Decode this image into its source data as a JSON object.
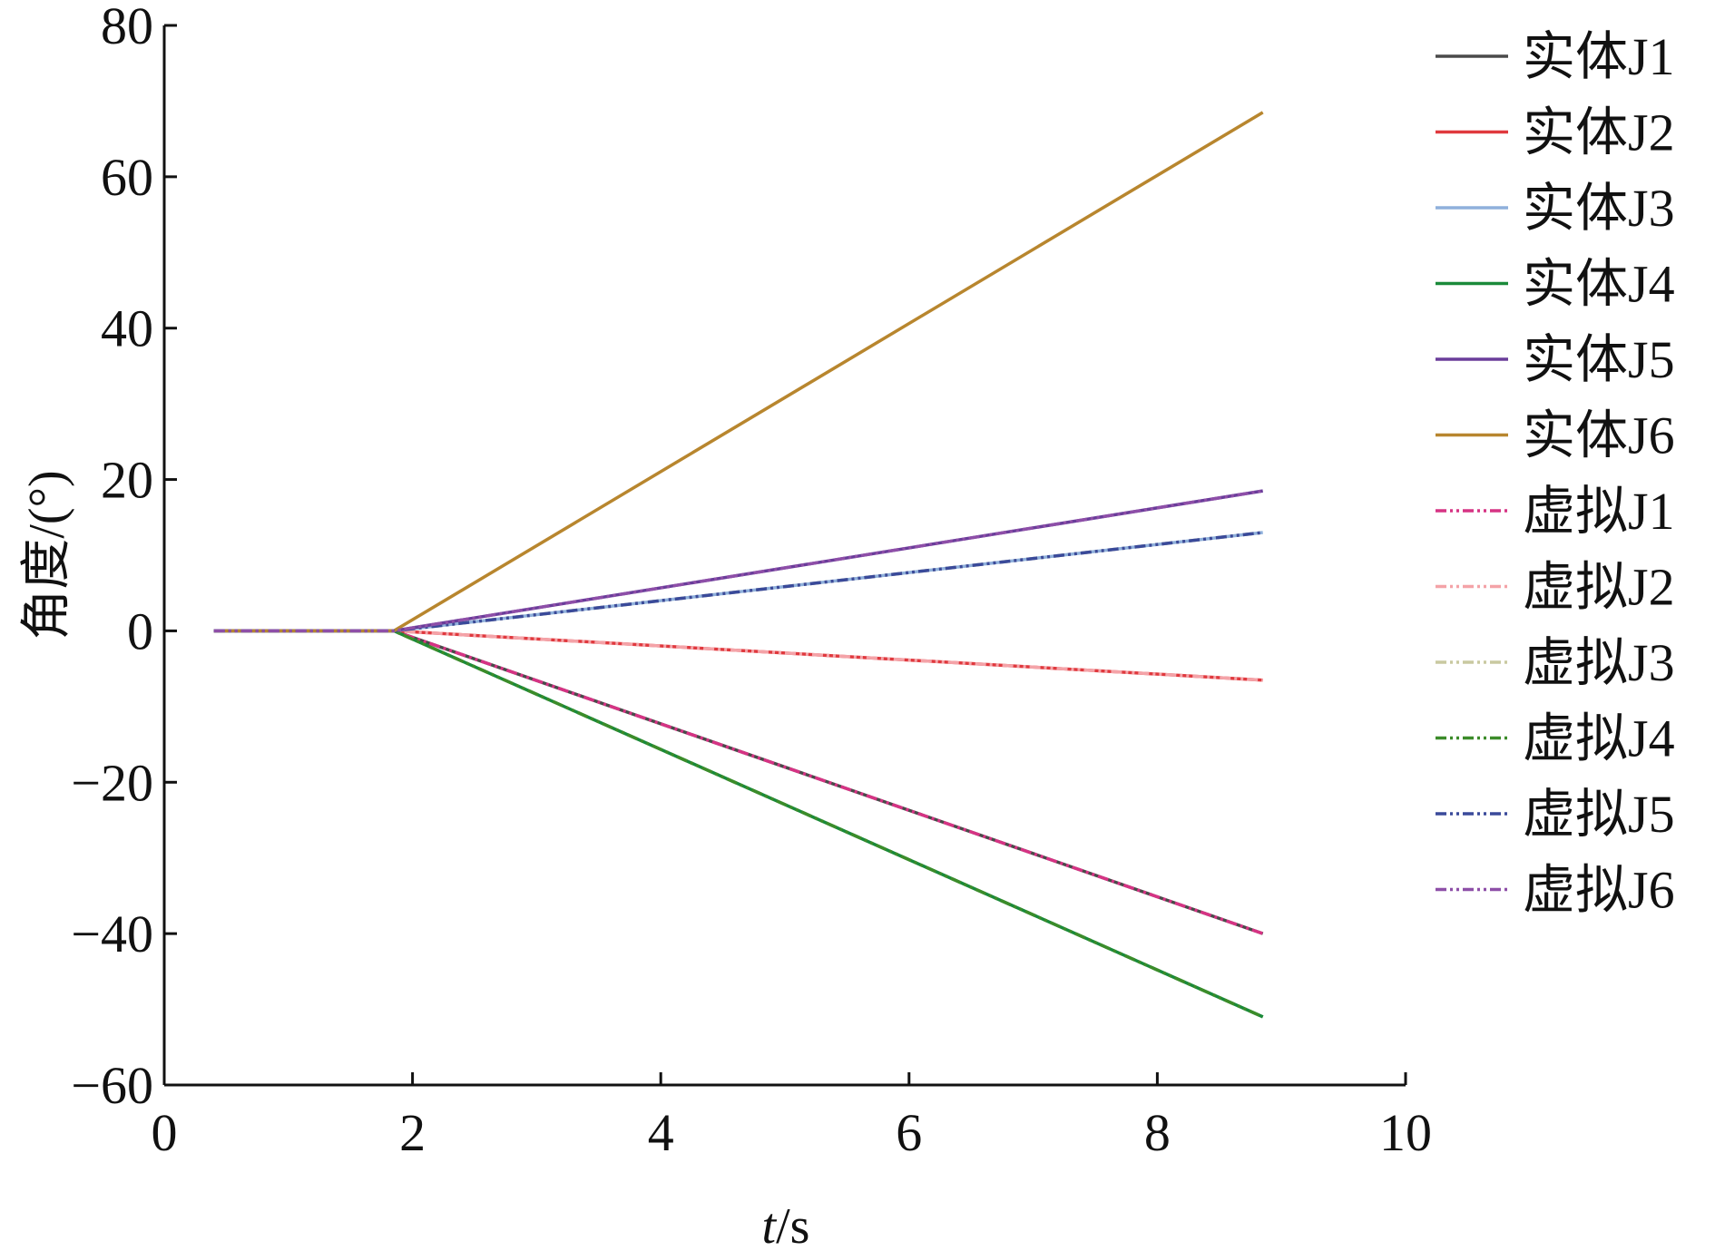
{
  "chart_data": {
    "type": "line",
    "title": "",
    "xlabel_italic": "t",
    "xlabel_rest": "/s",
    "ylabel": "角度/(°)",
    "xlim": [
      0,
      10
    ],
    "ylim": [
      -60,
      80
    ],
    "xticks": [
      0,
      2,
      4,
      6,
      8,
      10
    ],
    "yticks": [
      -60,
      -40,
      -20,
      0,
      20,
      40,
      60,
      80
    ],
    "ytick_labels": [
      "−60",
      "−40",
      "−20",
      "0",
      "20",
      "40",
      "60",
      "80"
    ],
    "grid": false,
    "legend_position": "right",
    "series": [
      {
        "name": "实体J1",
        "color": "#4a4a4a",
        "dash": "solid",
        "x": [
          0.4,
          1.85,
          8.85
        ],
        "y": [
          0,
          0,
          -40
        ]
      },
      {
        "name": "实体J2",
        "color": "#e0393e",
        "dash": "solid",
        "x": [
          0.4,
          1.85,
          8.85
        ],
        "y": [
          0,
          0,
          -6.5
        ]
      },
      {
        "name": "实体J3",
        "color": "#8fb0dc",
        "dash": "solid",
        "x": [
          0.4,
          1.85,
          8.85
        ],
        "y": [
          0,
          0,
          13
        ]
      },
      {
        "name": "实体J4",
        "color": "#1a8a3a",
        "dash": "solid",
        "x": [
          0.4,
          1.85,
          8.85
        ],
        "y": [
          0,
          0,
          -51
        ]
      },
      {
        "name": "实体J5",
        "color": "#6a3d9a",
        "dash": "solid",
        "x": [
          0.4,
          1.85,
          8.85
        ],
        "y": [
          0,
          0,
          18.5
        ]
      },
      {
        "name": "实体J6",
        "color": "#b8862e",
        "dash": "solid",
        "x": [
          0.4,
          1.85,
          8.85
        ],
        "y": [
          0,
          0,
          68.5
        ]
      },
      {
        "name": "虚拟J1",
        "color": "#d63384",
        "dash": "dashdot",
        "x": [
          0.4,
          1.85,
          8.85
        ],
        "y": [
          0,
          0,
          -40
        ]
      },
      {
        "name": "虚拟J2",
        "color": "#f4a3a8",
        "dash": "dashdot",
        "x": [
          0.4,
          1.85,
          8.85
        ],
        "y": [
          0,
          0,
          -6.5
        ]
      },
      {
        "name": "虚拟J3",
        "color": "#c9c9a0",
        "dash": "dashdot",
        "x": [
          0.4,
          1.85,
          8.85
        ],
        "y": [
          0,
          0,
          13
        ]
      },
      {
        "name": "虚拟J4",
        "color": "#3c8c2a",
        "dash": "dashdot",
        "x": [
          0.4,
          1.85,
          8.85
        ],
        "y": [
          0,
          0,
          -51
        ]
      },
      {
        "name": "虚拟J5",
        "color": "#3a4a9a",
        "dash": "dashdot",
        "x": [
          0.4,
          1.85,
          8.85
        ],
        "y": [
          0,
          0,
          13
        ]
      },
      {
        "name": "虚拟J6",
        "color": "#8e4fa8",
        "dash": "dashdot",
        "x": [
          0.4,
          1.85,
          8.85
        ],
        "y": [
          0,
          0,
          18.5
        ]
      }
    ]
  }
}
